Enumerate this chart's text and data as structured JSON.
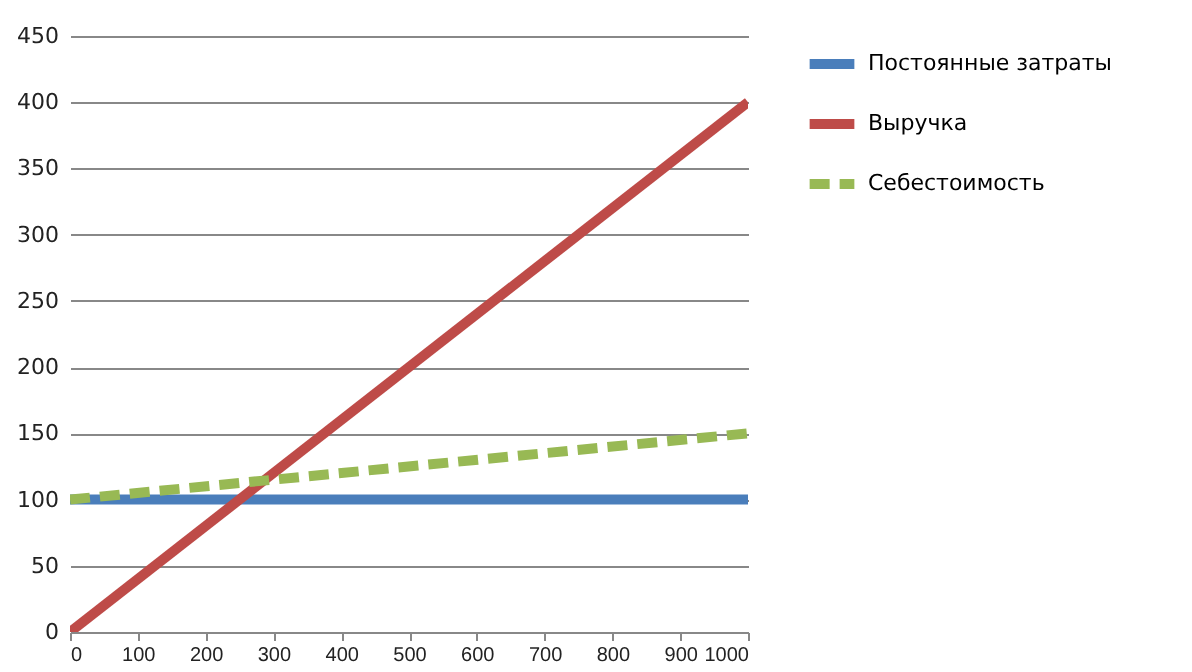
{
  "chart_data": {
    "type": "line",
    "x": [
      0,
      1000
    ],
    "xlim": [
      0,
      1000
    ],
    "xticks": [
      0,
      100,
      200,
      300,
      400,
      500,
      600,
      700,
      800,
      900,
      1000
    ],
    "ylim": [
      0,
      450
    ],
    "yticks": [
      0,
      50,
      100,
      150,
      200,
      250,
      300,
      350,
      400,
      450
    ],
    "grid": "y",
    "legend": "right",
    "marker": "none",
    "series": [
      {
        "name": "Постоянные затраты",
        "color": "#4a7ebb",
        "values": [
          100,
          100
        ],
        "line_style": "solid"
      },
      {
        "name": "Выручка",
        "color": "#be4b48",
        "values": [
          0,
          400
        ],
        "line_style": "solid"
      },
      {
        "name": "Себестоимость",
        "color": "#98b954",
        "values": [
          100,
          150
        ],
        "line_style": "dashed"
      }
    ]
  }
}
